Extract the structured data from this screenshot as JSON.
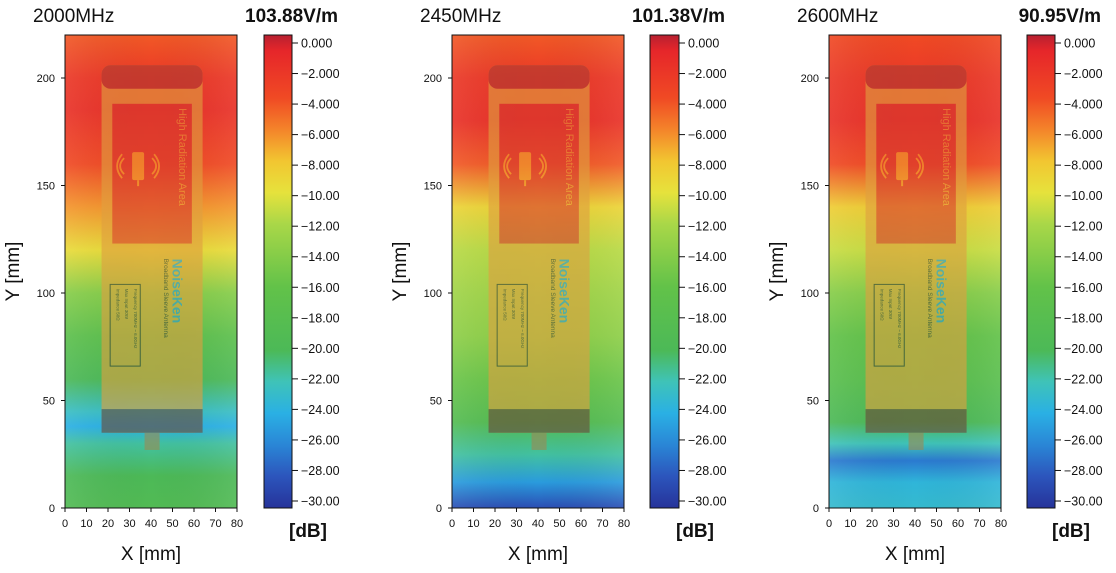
{
  "chart_data": [
    {
      "type": "heatmap",
      "title": "2000MHz",
      "peak_field": "103.88V/m",
      "xlabel": "X [mm]",
      "ylabel": "Y [mm]",
      "xlim": [
        0,
        80
      ],
      "ylim": [
        0,
        220
      ],
      "xticks": [
        0,
        10,
        20,
        30,
        40,
        50,
        60,
        70,
        80
      ],
      "yticks": [
        0,
        50,
        100,
        150,
        200
      ],
      "y_profile": [
        {
          "y": 220,
          "db": -4.5
        },
        {
          "y": 200,
          "db": -2.5
        },
        {
          "y": 185,
          "db": -2.0
        },
        {
          "y": 160,
          "db": -4.0
        },
        {
          "y": 140,
          "db": -6.5
        },
        {
          "y": 120,
          "db": -9.5
        },
        {
          "y": 100,
          "db": -14.0
        },
        {
          "y": 80,
          "db": -17.0
        },
        {
          "y": 60,
          "db": -20.0
        },
        {
          "y": 45,
          "db": -22.5
        },
        {
          "y": 38,
          "db": -24.0
        },
        {
          "y": 30,
          "db": -21.5
        },
        {
          "y": 15,
          "db": -20.0
        },
        {
          "y": 0,
          "db": -19.0
        }
      ]
    },
    {
      "type": "heatmap",
      "title": "2450MHz",
      "peak_field": "101.38V/m",
      "xlabel": "X [mm]",
      "ylabel": "Y [mm]",
      "xlim": [
        0,
        80
      ],
      "ylim": [
        0,
        220
      ],
      "xticks": [
        0,
        10,
        20,
        30,
        40,
        50,
        60,
        70,
        80
      ],
      "yticks": [
        0,
        50,
        100,
        150,
        200
      ],
      "y_profile": [
        {
          "y": 220,
          "db": -4.5
        },
        {
          "y": 200,
          "db": -2.5
        },
        {
          "y": 180,
          "db": -2.0
        },
        {
          "y": 160,
          "db": -4.5
        },
        {
          "y": 140,
          "db": -9.0
        },
        {
          "y": 120,
          "db": -11.5
        },
        {
          "y": 100,
          "db": -12.5
        },
        {
          "y": 80,
          "db": -13.5
        },
        {
          "y": 60,
          "db": -15.5
        },
        {
          "y": 40,
          "db": -18.5
        },
        {
          "y": 25,
          "db": -21.5
        },
        {
          "y": 12,
          "db": -25.0
        },
        {
          "y": 0,
          "db": -28.5
        }
      ]
    },
    {
      "type": "heatmap",
      "title": "2600MHz",
      "peak_field": "90.95V/m",
      "xlabel": "X [mm]",
      "ylabel": "Y [mm]",
      "xlim": [
        0,
        80
      ],
      "ylim": [
        0,
        220
      ],
      "xticks": [
        0,
        10,
        20,
        30,
        40,
        50,
        60,
        70,
        80
      ],
      "yticks": [
        0,
        50,
        100,
        150,
        200
      ],
      "y_profile": [
        {
          "y": 220,
          "db": -4.0
        },
        {
          "y": 200,
          "db": -2.5
        },
        {
          "y": 180,
          "db": -2.0
        },
        {
          "y": 160,
          "db": -4.0
        },
        {
          "y": 140,
          "db": -8.5
        },
        {
          "y": 120,
          "db": -11.0
        },
        {
          "y": 100,
          "db": -14.0
        },
        {
          "y": 80,
          "db": -16.0
        },
        {
          "y": 60,
          "db": -17.5
        },
        {
          "y": 40,
          "db": -20.0
        },
        {
          "y": 30,
          "db": -22.0
        },
        {
          "y": 22,
          "db": -26.5
        },
        {
          "y": 12,
          "db": -23.5
        },
        {
          "y": 0,
          "db": -23.0
        }
      ]
    }
  ],
  "colorbar": {
    "unit": "[dB]",
    "ticks": [
      "0.000",
      "−2.000",
      "−4.000",
      "−6.000",
      "−8.000",
      "−10.00",
      "−12.00",
      "−14.00",
      "−16.00",
      "−18.00",
      "−20.00",
      "−22.00",
      "−24.00",
      "−26.00",
      "−28.00",
      "−30.00"
    ],
    "min": -30,
    "max": 0,
    "colors": [
      {
        "db": 0,
        "color": "#b82030"
      },
      {
        "db": -1,
        "color": "#e6262a"
      },
      {
        "db": -4,
        "color": "#f04a24"
      },
      {
        "db": -6,
        "color": "#f4842a"
      },
      {
        "db": -8,
        "color": "#f2c631"
      },
      {
        "db": -10,
        "color": "#e6e23c"
      },
      {
        "db": -12,
        "color": "#a9d748"
      },
      {
        "db": -16,
        "color": "#62c249"
      },
      {
        "db": -20,
        "color": "#4cb957"
      },
      {
        "db": -22,
        "color": "#3fc3b8"
      },
      {
        "db": -24,
        "color": "#2ab0e4"
      },
      {
        "db": -26,
        "color": "#2a86d6"
      },
      {
        "db": -28,
        "color": "#2c55bc"
      },
      {
        "db": -30,
        "color": "#26339a"
      }
    ]
  },
  "antenna": {
    "high_radiation_text": "High Radiation Area",
    "logo_text": "NoiseKen",
    "model_text": "Broadband Sleeve Antenna",
    "spec_lines": [
      "Frequency 700MHz ~ 6.0GHz",
      "Max Input    30W",
      "Impedance    50Ω"
    ]
  }
}
